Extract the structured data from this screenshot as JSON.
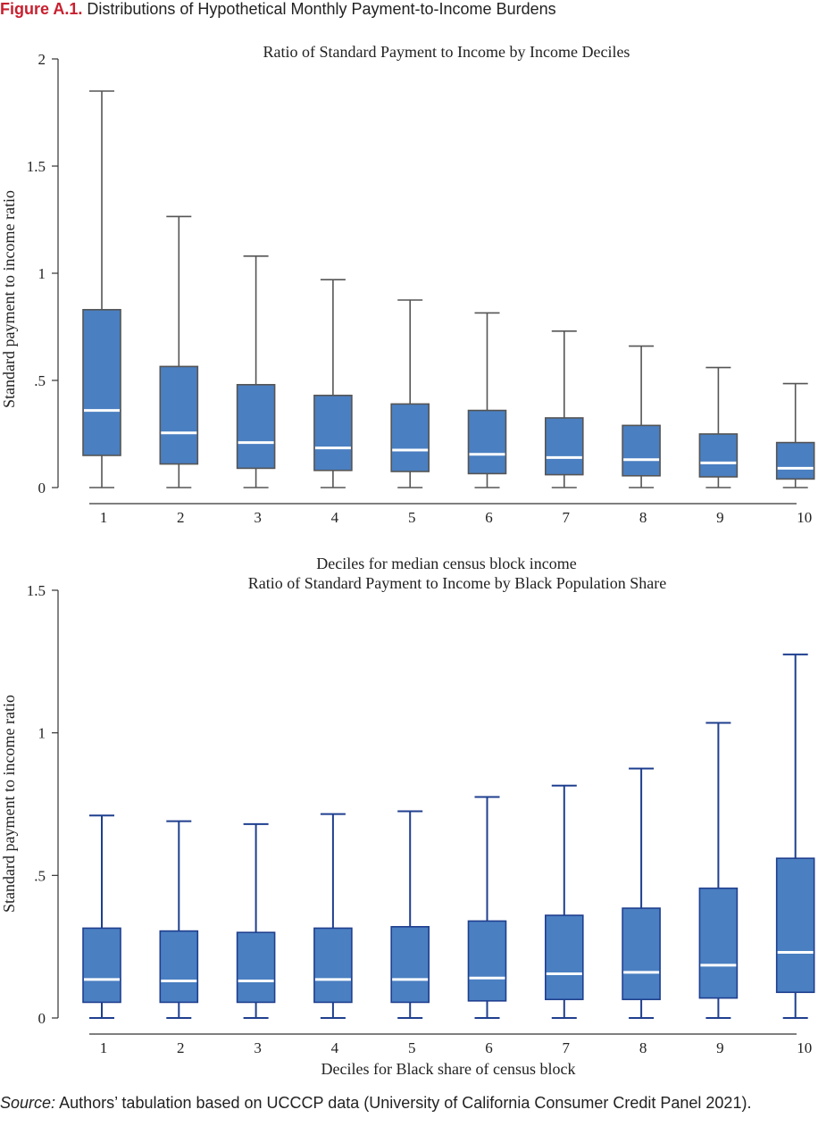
{
  "figure": {
    "label": "Figure A.1.",
    "title": "Distributions of Hypothetical Monthly Payment-to-Income Burdens"
  },
  "source": {
    "label": "Source:",
    "text": "Authors’ tabulation based on UCCCP data (University of California Consumer Credit Panel 2021)."
  },
  "colors": {
    "box_fill": "#4a7fc1",
    "median": "#ffffff",
    "box_stroke_top": "#555555",
    "box_stroke_bottom": "#1f3f8f",
    "whisker_top": "#555555",
    "whisker_bottom": "#1f3f8f",
    "title_accent": "#c8202f"
  },
  "chart_data": [
    {
      "type": "box",
      "title": "Ratio of Standard Payment to Income by Income Deciles",
      "xlabel": "Deciles for median census block income",
      "ylabel": "Standard payment to income ratio",
      "ylim": [
        0,
        2
      ],
      "yticks": [
        0,
        0.5,
        1,
        1.5,
        2
      ],
      "yticklabels": [
        "0",
        ".5",
        "1",
        "1.5",
        "2"
      ],
      "categories": [
        "1",
        "2",
        "3",
        "4",
        "5",
        "6",
        "7",
        "8",
        "9",
        "10"
      ],
      "boxes": [
        {
          "min": 0,
          "q1": 0.15,
          "median": 0.36,
          "q3": 0.83,
          "max": 1.85
        },
        {
          "min": 0,
          "q1": 0.11,
          "median": 0.255,
          "q3": 0.565,
          "max": 1.265
        },
        {
          "min": 0,
          "q1": 0.09,
          "median": 0.21,
          "q3": 0.48,
          "max": 1.08
        },
        {
          "min": 0,
          "q1": 0.08,
          "median": 0.185,
          "q3": 0.43,
          "max": 0.97
        },
        {
          "min": 0,
          "q1": 0.075,
          "median": 0.175,
          "q3": 0.39,
          "max": 0.875
        },
        {
          "min": 0,
          "q1": 0.065,
          "median": 0.155,
          "q3": 0.36,
          "max": 0.815
        },
        {
          "min": 0,
          "q1": 0.06,
          "median": 0.14,
          "q3": 0.325,
          "max": 0.73
        },
        {
          "min": 0,
          "q1": 0.055,
          "median": 0.13,
          "q3": 0.29,
          "max": 0.66
        },
        {
          "min": 0,
          "q1": 0.05,
          "median": 0.115,
          "q3": 0.25,
          "max": 0.56
        },
        {
          "min": 0,
          "q1": 0.04,
          "median": 0.09,
          "q3": 0.21,
          "max": 0.485
        }
      ]
    },
    {
      "type": "box",
      "title": "Ratio of Standard Payment to Income by Black Population Share",
      "xlabel": "Deciles for Black share of census block",
      "ylabel": "Standard payment to income ratio",
      "ylim": [
        0,
        1.5
      ],
      "yticks": [
        0,
        0.5,
        1,
        1.5
      ],
      "yticklabels": [
        "0",
        ".5",
        "1",
        "1.5"
      ],
      "categories": [
        "1",
        "2",
        "3",
        "4",
        "5",
        "6",
        "7",
        "8",
        "9",
        "10"
      ],
      "boxes": [
        {
          "min": 0,
          "q1": 0.055,
          "median": 0.135,
          "q3": 0.315,
          "max": 0.71
        },
        {
          "min": 0,
          "q1": 0.055,
          "median": 0.13,
          "q3": 0.305,
          "max": 0.69
        },
        {
          "min": 0,
          "q1": 0.055,
          "median": 0.13,
          "q3": 0.3,
          "max": 0.68
        },
        {
          "min": 0,
          "q1": 0.055,
          "median": 0.135,
          "q3": 0.315,
          "max": 0.715
        },
        {
          "min": 0,
          "q1": 0.055,
          "median": 0.135,
          "q3": 0.32,
          "max": 0.725
        },
        {
          "min": 0,
          "q1": 0.06,
          "median": 0.14,
          "q3": 0.34,
          "max": 0.775
        },
        {
          "min": 0,
          "q1": 0.065,
          "median": 0.155,
          "q3": 0.36,
          "max": 0.815
        },
        {
          "min": 0,
          "q1": 0.065,
          "median": 0.16,
          "q3": 0.385,
          "max": 0.875
        },
        {
          "min": 0,
          "q1": 0.07,
          "median": 0.185,
          "q3": 0.455,
          "max": 1.035
        },
        {
          "min": 0,
          "q1": 0.09,
          "median": 0.23,
          "q3": 0.56,
          "max": 1.275
        }
      ]
    }
  ]
}
